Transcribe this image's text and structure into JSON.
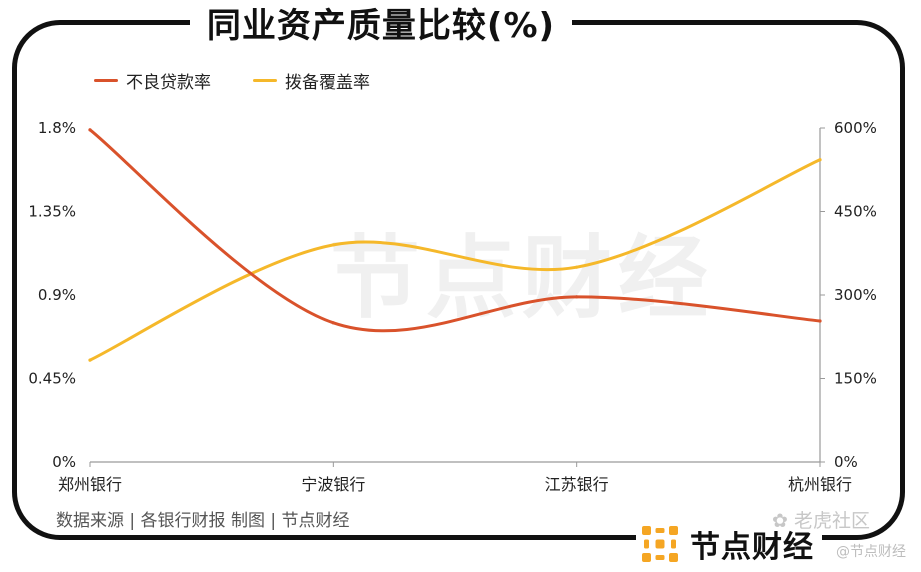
{
  "header": {
    "title": "同业资产质量比较(%)"
  },
  "legend": [
    {
      "label": "不良贷款率",
      "color": "#d9522b"
    },
    {
      "label": "拨备覆盖率",
      "color": "#f5b82a"
    }
  ],
  "footer": {
    "source": "数据来源 | 各银行财报    制图 | 节点财经"
  },
  "brand": {
    "name": "节点财经",
    "icon": "dot-grid-logo-icon"
  },
  "watermark": {
    "main": "节点财经",
    "site": "老虎社区",
    "sub": "@节点财经"
  },
  "chart_data": {
    "type": "line",
    "categories": [
      "郑州银行",
      "宁波银行",
      "江苏银行",
      "杭州银行"
    ],
    "series": [
      {
        "name": "不良贷款率",
        "axis": "left",
        "color": "#d9522b",
        "values": [
          1.79,
          0.75,
          0.89,
          0.76
        ]
      },
      {
        "name": "拨备覆盖率",
        "axis": "right",
        "color": "#f5b82a",
        "values": [
          183,
          390,
          350,
          543
        ]
      }
    ],
    "y_left": {
      "ticks": [
        "0%",
        "0.45%",
        "0.9%",
        "1.35%",
        "1.8%"
      ],
      "ylim": [
        0,
        1.8
      ]
    },
    "y_right": {
      "ticks": [
        "0%",
        "150%",
        "300%",
        "450%",
        "600%"
      ],
      "ylim": [
        0,
        600
      ]
    },
    "grid": false,
    "legend_position": "top-left"
  }
}
